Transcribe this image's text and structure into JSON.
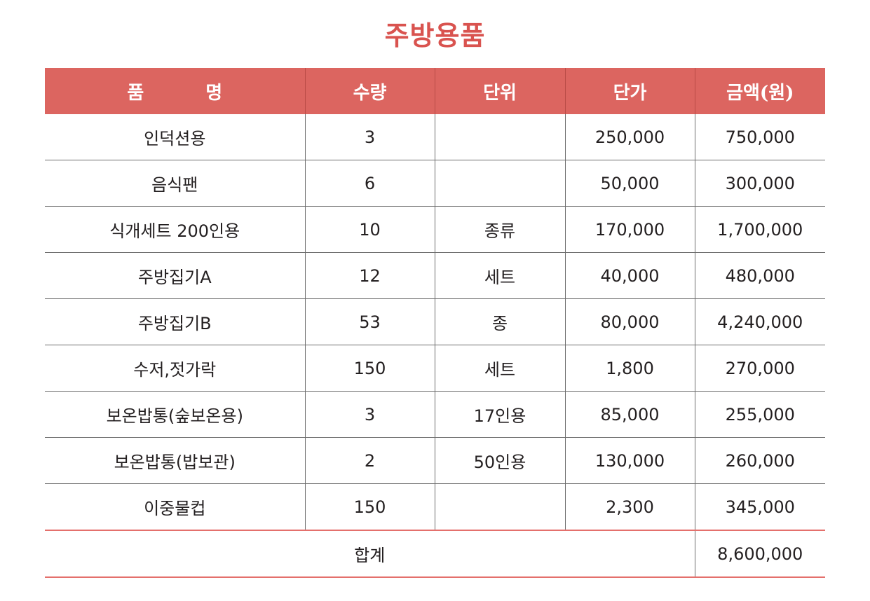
{
  "title": "주방용품",
  "table": {
    "headers": {
      "name_part1": "품",
      "name_part2": "명",
      "quantity": "수량",
      "unit": "단위",
      "unit_price": "단가",
      "amount": "금액(원)"
    },
    "rows": [
      {
        "name": "인덕션용",
        "quantity": "3",
        "unit": "",
        "unit_price": "250,000",
        "amount": "750,000"
      },
      {
        "name": "음식팬",
        "quantity": "6",
        "unit": "",
        "unit_price": "50,000",
        "amount": "300,000"
      },
      {
        "name": "식개세트 200인용",
        "quantity": "10",
        "unit": "종류",
        "unit_price": "170,000",
        "amount": "1,700,000"
      },
      {
        "name": "주방집기A",
        "quantity": "12",
        "unit": "세트",
        "unit_price": "40,000",
        "amount": "480,000"
      },
      {
        "name": "주방집기B",
        "quantity": "53",
        "unit": "종",
        "unit_price": "80,000",
        "amount": "4,240,000"
      },
      {
        "name": "수저,젓가락",
        "quantity": "150",
        "unit": "세트",
        "unit_price": "1,800",
        "amount": "270,000"
      },
      {
        "name": "보온밥통(숲보온용)",
        "quantity": "3",
        "unit": "17인용",
        "unit_price": "85,000",
        "amount": "255,000"
      },
      {
        "name": "보온밥통(밥보관)",
        "quantity": "2",
        "unit": "50인용",
        "unit_price": "130,000",
        "amount": "260,000"
      },
      {
        "name": "이중물컵",
        "quantity": "150",
        "unit": "",
        "unit_price": "2,300",
        "amount": "345,000"
      }
    ],
    "total": {
      "label": "합계",
      "amount": "8,600,000"
    }
  }
}
